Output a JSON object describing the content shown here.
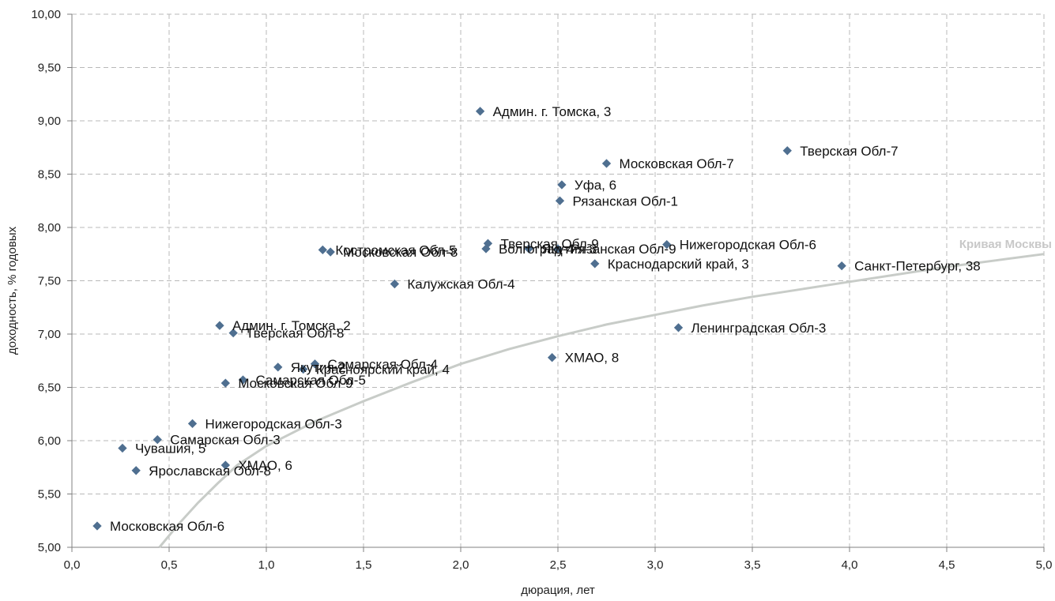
{
  "chart_data": {
    "type": "scatter",
    "xlabel": "дюрация, лет",
    "ylabel": "доходность, % годовых",
    "xlim": [
      0,
      5
    ],
    "ylim": [
      5,
      10
    ],
    "grid": true,
    "x_ticks": [
      0.0,
      0.5,
      1.0,
      1.5,
      2.0,
      2.5,
      3.0,
      3.5,
      4.0,
      4.5,
      5.0
    ],
    "x_tick_labels": [
      "0,0",
      "0,5",
      "1,0",
      "1,5",
      "2,0",
      "2,5",
      "3,0",
      "3,5",
      "4,0",
      "4,5",
      "5,0"
    ],
    "y_ticks": [
      5.0,
      5.5,
      6.0,
      6.5,
      7.0,
      7.5,
      8.0,
      8.5,
      9.0,
      9.5,
      10.0
    ],
    "y_tick_labels": [
      "5,00",
      "5,50",
      "6,00",
      "6,50",
      "7,00",
      "7,50",
      "8,00",
      "8,50",
      "9,00",
      "9,50",
      "10,00"
    ],
    "marker_color": "#4f6f90",
    "curve_color": "#c8ccc8",
    "points": [
      {
        "label": "Админ. г. Томска, 3",
        "x": 2.1,
        "y": 9.09
      },
      {
        "label": "Тверская Обл-7",
        "x": 3.68,
        "y": 8.72
      },
      {
        "label": "Московская Обл-7",
        "x": 2.75,
        "y": 8.6
      },
      {
        "label": "Уфа, 6",
        "x": 2.52,
        "y": 8.4
      },
      {
        "label": "Рязанская Обл-1",
        "x": 2.51,
        "y": 8.25
      },
      {
        "label": "Тверская Обл-9",
        "x": 2.14,
        "y": 7.85
      },
      {
        "label": "Волгоград-4",
        "x": 2.13,
        "y": 7.8
      },
      {
        "label": "Якутия-3",
        "x": 2.35,
        "y": 7.8
      },
      {
        "label": "Рязанская Обл-9",
        "x": 2.5,
        "y": 7.8
      },
      {
        "label": "Нижегородская Обл-6",
        "x": 3.06,
        "y": 7.84
      },
      {
        "label": "Костромская Обл-5",
        "x": 1.29,
        "y": 7.79
      },
      {
        "label": "Московская Обл-8",
        "x": 1.33,
        "y": 7.77
      },
      {
        "label": "Краснодарский край, 3",
        "x": 2.69,
        "y": 7.66
      },
      {
        "label": "Санкт-Петербург, 38",
        "x": 3.96,
        "y": 7.64
      },
      {
        "label": "Калужская Обл-4",
        "x": 1.66,
        "y": 7.47
      },
      {
        "label": "Админ. г. Томска, 2",
        "x": 0.76,
        "y": 7.08
      },
      {
        "label": "Тверская Обл-8",
        "x": 0.83,
        "y": 7.01
      },
      {
        "label": "Ленинградская Обл-3",
        "x": 3.12,
        "y": 7.06
      },
      {
        "label": "ХМАО, 8",
        "x": 2.47,
        "y": 6.78
      },
      {
        "label": "Самарская Обл-4",
        "x": 1.25,
        "y": 6.72
      },
      {
        "label": "Якутия-2",
        "x": 1.06,
        "y": 6.69
      },
      {
        "label": "Красноярский край, 4",
        "x": 1.19,
        "y": 6.67
      },
      {
        "label": "Самарская Обл-5",
        "x": 0.88,
        "y": 6.57
      },
      {
        "label": "Московская Обл-9",
        "x": 0.79,
        "y": 6.54
      },
      {
        "label": "Нижегородская Обл-3",
        "x": 0.62,
        "y": 6.16
      },
      {
        "label": "Самарская Обл-3",
        "x": 0.44,
        "y": 6.01
      },
      {
        "label": "Чувашия, 5",
        "x": 0.26,
        "y": 5.93
      },
      {
        "label": "ХМАО, 6",
        "x": 0.79,
        "y": 5.77
      },
      {
        "label": "Ярославская Обл-8",
        "x": 0.33,
        "y": 5.72
      },
      {
        "label": "Московская Обл-6",
        "x": 0.13,
        "y": 5.2
      }
    ],
    "curve": {
      "name": "Кривая Москвы",
      "x": [
        0.45,
        0.55,
        0.65,
        0.75,
        0.85,
        1.0,
        1.25,
        1.5,
        1.75,
        2.0,
        2.25,
        2.5,
        2.75,
        3.0,
        3.25,
        3.5,
        3.75,
        4.0,
        4.25,
        4.5,
        4.75,
        5.0
      ],
      "y": [
        5.0,
        5.22,
        5.42,
        5.6,
        5.77,
        5.95,
        6.18,
        6.37,
        6.55,
        6.72,
        6.86,
        6.98,
        7.09,
        7.18,
        7.27,
        7.35,
        7.42,
        7.49,
        7.56,
        7.63,
        7.69,
        7.75
      ]
    }
  }
}
